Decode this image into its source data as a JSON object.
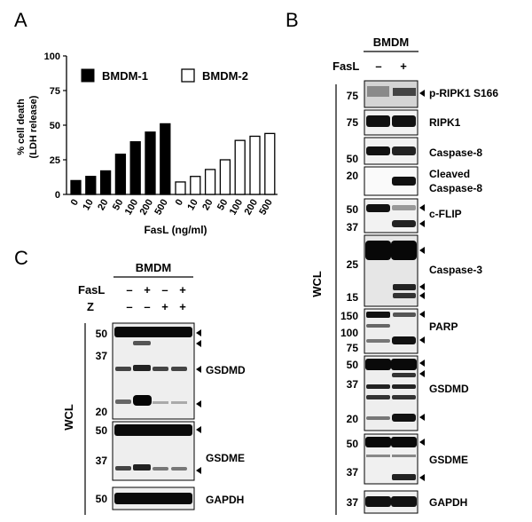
{
  "panels": {
    "a": "A",
    "b": "B",
    "c": "C"
  },
  "colors": {
    "series1": "#000000",
    "series2": "#ffffff",
    "stroke": "#000000"
  },
  "chart_data": {
    "type": "bar",
    "ylabel_line1": "% cell death",
    "ylabel_line2": "(LDH release)",
    "xlabel": "FasL (ng/ml)",
    "ylim": [
      0,
      100
    ],
    "yticks": [
      0,
      25,
      50,
      75,
      100
    ],
    "grid": false,
    "legend_position": "top",
    "categories": [
      "0",
      "10",
      "20",
      "50",
      "100",
      "200",
      "500"
    ],
    "series": [
      {
        "name": "BMDM-1",
        "fill": "black",
        "values": [
          10,
          13,
          17,
          29,
          38,
          45,
          51
        ]
      },
      {
        "name": "BMDM-2",
        "fill": "white",
        "values": [
          9,
          13,
          18,
          25,
          39,
          42,
          44
        ]
      }
    ]
  },
  "blot_b": {
    "header": "BMDM",
    "row_label": "FasL",
    "lanes": [
      "–",
      "+"
    ],
    "side_label": "WCL",
    "proteins": [
      "p-RIPK1 S166",
      "RIPK1",
      "Caspase-8",
      "Cleaved",
      "Caspase-8",
      "c-FLIP",
      "Caspase-3",
      "PARP",
      "GSDMD",
      "GSDME",
      "GAPDH"
    ],
    "mw_markers": [
      "75",
      "75",
      "50",
      "20",
      "50",
      "37",
      "25",
      "15",
      "150",
      "100",
      "75",
      "50",
      "37",
      "20",
      "50",
      "37",
      "37"
    ]
  },
  "blot_c": {
    "header": "BMDM",
    "row1_label": "FasL",
    "row1": [
      "–",
      "+",
      "–",
      "+"
    ],
    "row2_label": "Z",
    "row2": [
      "–",
      "–",
      "+",
      "+"
    ],
    "side_label": "WCL",
    "proteins": [
      "GSDMD",
      "GSDME",
      "GAPDH"
    ],
    "mw_markers": [
      "50",
      "37",
      "20",
      "50",
      "37"
    ]
  }
}
